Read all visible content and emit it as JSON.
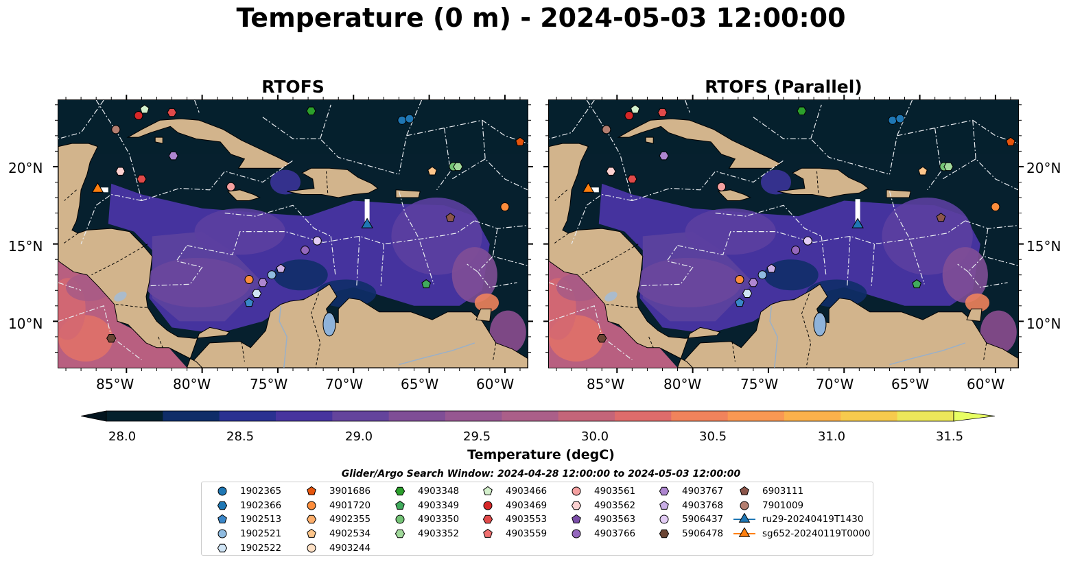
{
  "title": "Temperature (0 m) - 2024-05-03 12:00:00",
  "panels": [
    {
      "title": "RTOFS"
    },
    {
      "title": "RTOFS (Parallel)"
    }
  ],
  "axes": {
    "lon_ticks": [
      "85°W",
      "80°W",
      "75°W",
      "70°W",
      "65°W",
      "60°W"
    ],
    "lat_ticks": [
      "20°N",
      "15°N",
      "10°N"
    ],
    "lon_range": [
      -89.5,
      -58.5
    ],
    "lat_range": [
      7.0,
      24.3
    ]
  },
  "colorbar": {
    "label": "Temperature (degC)",
    "ticks": [
      "28.0",
      "28.5",
      "29.0",
      "29.5",
      "30.0",
      "30.5",
      "31.0",
      "31.5"
    ],
    "vmin": 28.0,
    "vmax": 31.5,
    "colors": [
      "#04202c",
      "#0f2d68",
      "#2a3191",
      "#47349e",
      "#64449c",
      "#7f4e96",
      "#965791",
      "#ab5f89",
      "#c46579",
      "#de6c6b",
      "#f0835c",
      "#f99853",
      "#fbb14c",
      "#f7ca4d",
      "#ece75a"
    ],
    "extend_low": "#02141e",
    "extend_high": "#e8ff63"
  },
  "search_window": "Glider/Argo Search Window: 2024-04-28 12:00:00 to 2024-05-03 12:00:00",
  "legend": [
    {
      "label": "1902365",
      "marker": "circle",
      "color": "#1f77b4"
    },
    {
      "label": "1902366",
      "marker": "hexagon",
      "color": "#1f77b4"
    },
    {
      "label": "1902513",
      "marker": "pentagon",
      "color": "#3a86c8"
    },
    {
      "label": "1902521",
      "marker": "circle",
      "color": "#8fbbe0"
    },
    {
      "label": "1902522",
      "marker": "hexagon",
      "color": "#cfe4f5"
    },
    {
      "label": "3901686",
      "marker": "pentagon",
      "color": "#e6550d"
    },
    {
      "label": "4901720",
      "marker": "circle",
      "color": "#fd8d3c"
    },
    {
      "label": "4902355",
      "marker": "hexagon",
      "color": "#fdae6b"
    },
    {
      "label": "4902534",
      "marker": "pentagon",
      "color": "#fdc58a"
    },
    {
      "label": "4903244",
      "marker": "circle",
      "color": "#fde0c5"
    },
    {
      "label": "4903348",
      "marker": "hexagon",
      "color": "#2ca02c"
    },
    {
      "label": "4903349",
      "marker": "pentagon",
      "color": "#41ab5d"
    },
    {
      "label": "4903350",
      "marker": "circle",
      "color": "#74c476"
    },
    {
      "label": "4903352",
      "marker": "hexagon",
      "color": "#a1d99b"
    },
    {
      "label": "4903466",
      "marker": "pentagon",
      "color": "#d4f0cc"
    },
    {
      "label": "4903469",
      "marker": "circle",
      "color": "#d62728"
    },
    {
      "label": "4903553",
      "marker": "hexagon",
      "color": "#e04a4a"
    },
    {
      "label": "4903559",
      "marker": "pentagon",
      "color": "#f07070"
    },
    {
      "label": "4903561",
      "marker": "circle",
      "color": "#f4a0a0"
    },
    {
      "label": "4903562",
      "marker": "hexagon",
      "color": "#fbd0d0"
    },
    {
      "label": "4903563",
      "marker": "pentagon",
      "color": "#7b4ea8"
    },
    {
      "label": "4903766",
      "marker": "circle",
      "color": "#9467bd"
    },
    {
      "label": "4903767",
      "marker": "hexagon",
      "color": "#ae86d0"
    },
    {
      "label": "4903768",
      "marker": "pentagon",
      "color": "#c9aee6"
    },
    {
      "label": "5906437",
      "marker": "circle",
      "color": "#e2ccf5"
    },
    {
      "label": "5906478",
      "marker": "hexagon",
      "color": "#6b4534"
    },
    {
      "label": "6903111",
      "marker": "pentagon",
      "color": "#8c564b"
    },
    {
      "label": "7901009",
      "marker": "circle",
      "color": "#b37e70"
    },
    {
      "label": "ru29-20240419T1430",
      "marker": "triangle-line",
      "color": "#1f77b4"
    },
    {
      "label": "sg652-20240119T0000",
      "marker": "triangle-line",
      "color": "#ff7f0e"
    }
  ],
  "platforms": [
    {
      "id": "1902365",
      "lon": -66.8,
      "lat": 23.0
    },
    {
      "id": "1902365",
      "lon": -66.3,
      "lat": 23.1
    },
    {
      "id": "4903469",
      "lon": -84.2,
      "lat": 23.3
    },
    {
      "id": "4903466",
      "lon": -83.8,
      "lat": 23.7
    },
    {
      "id": "4903553",
      "lon": -82.0,
      "lat": 23.5
    },
    {
      "id": "4903348",
      "lon": -72.8,
      "lat": 23.6
    },
    {
      "id": "3901686",
      "lon": -59.0,
      "lat": 21.6
    },
    {
      "id": "7901009",
      "lon": -85.7,
      "lat": 22.4
    },
    {
      "id": "4903767",
      "lon": -81.9,
      "lat": 20.7
    },
    {
      "id": "4903562",
      "lon": -85.4,
      "lat": 19.7
    },
    {
      "id": "4903553",
      "lon": -84.0,
      "lat": 19.2
    },
    {
      "id": "4903561",
      "lon": -78.1,
      "lat": 18.7
    },
    {
      "id": "4902534",
      "lon": -64.8,
      "lat": 19.7
    },
    {
      "id": "4903350",
      "lon": -63.4,
      "lat": 20.0
    },
    {
      "id": "4903352",
      "lon": -63.1,
      "lat": 20.0
    },
    {
      "id": "4901720",
      "lon": -60.0,
      "lat": 17.4
    },
    {
      "id": "6903111",
      "lon": -63.6,
      "lat": 16.7
    },
    {
      "id": "5906437",
      "lon": -72.4,
      "lat": 15.2
    },
    {
      "id": "4903766",
      "lon": -73.2,
      "lat": 14.6
    },
    {
      "id": "4903768",
      "lon": -74.8,
      "lat": 13.4
    },
    {
      "id": "1902521",
      "lon": -75.4,
      "lat": 13.0
    },
    {
      "id": "4903767",
      "lon": -76.0,
      "lat": 12.5
    },
    {
      "id": "4901720",
      "lon": -76.9,
      "lat": 12.7
    },
    {
      "id": "1902522",
      "lon": -76.4,
      "lat": 11.8
    },
    {
      "id": "1902513",
      "lon": -76.9,
      "lat": 11.2
    },
    {
      "id": "4903349",
      "lon": -65.2,
      "lat": 12.4
    },
    {
      "id": "5906478",
      "lon": -86.0,
      "lat": 8.9
    }
  ],
  "gliders": [
    {
      "id": "ru29-20240419T1430",
      "lon": -69.1,
      "lat": 16.2,
      "track": [
        [
          -69.1,
          17.9
        ],
        [
          -69.1,
          16.2
        ]
      ]
    },
    {
      "id": "sg652-20240119T0000",
      "lon": -86.9,
      "lat": 18.5,
      "track": [
        [
          -86.2,
          18.5
        ],
        [
          -86.9,
          18.5
        ]
      ]
    }
  ]
}
